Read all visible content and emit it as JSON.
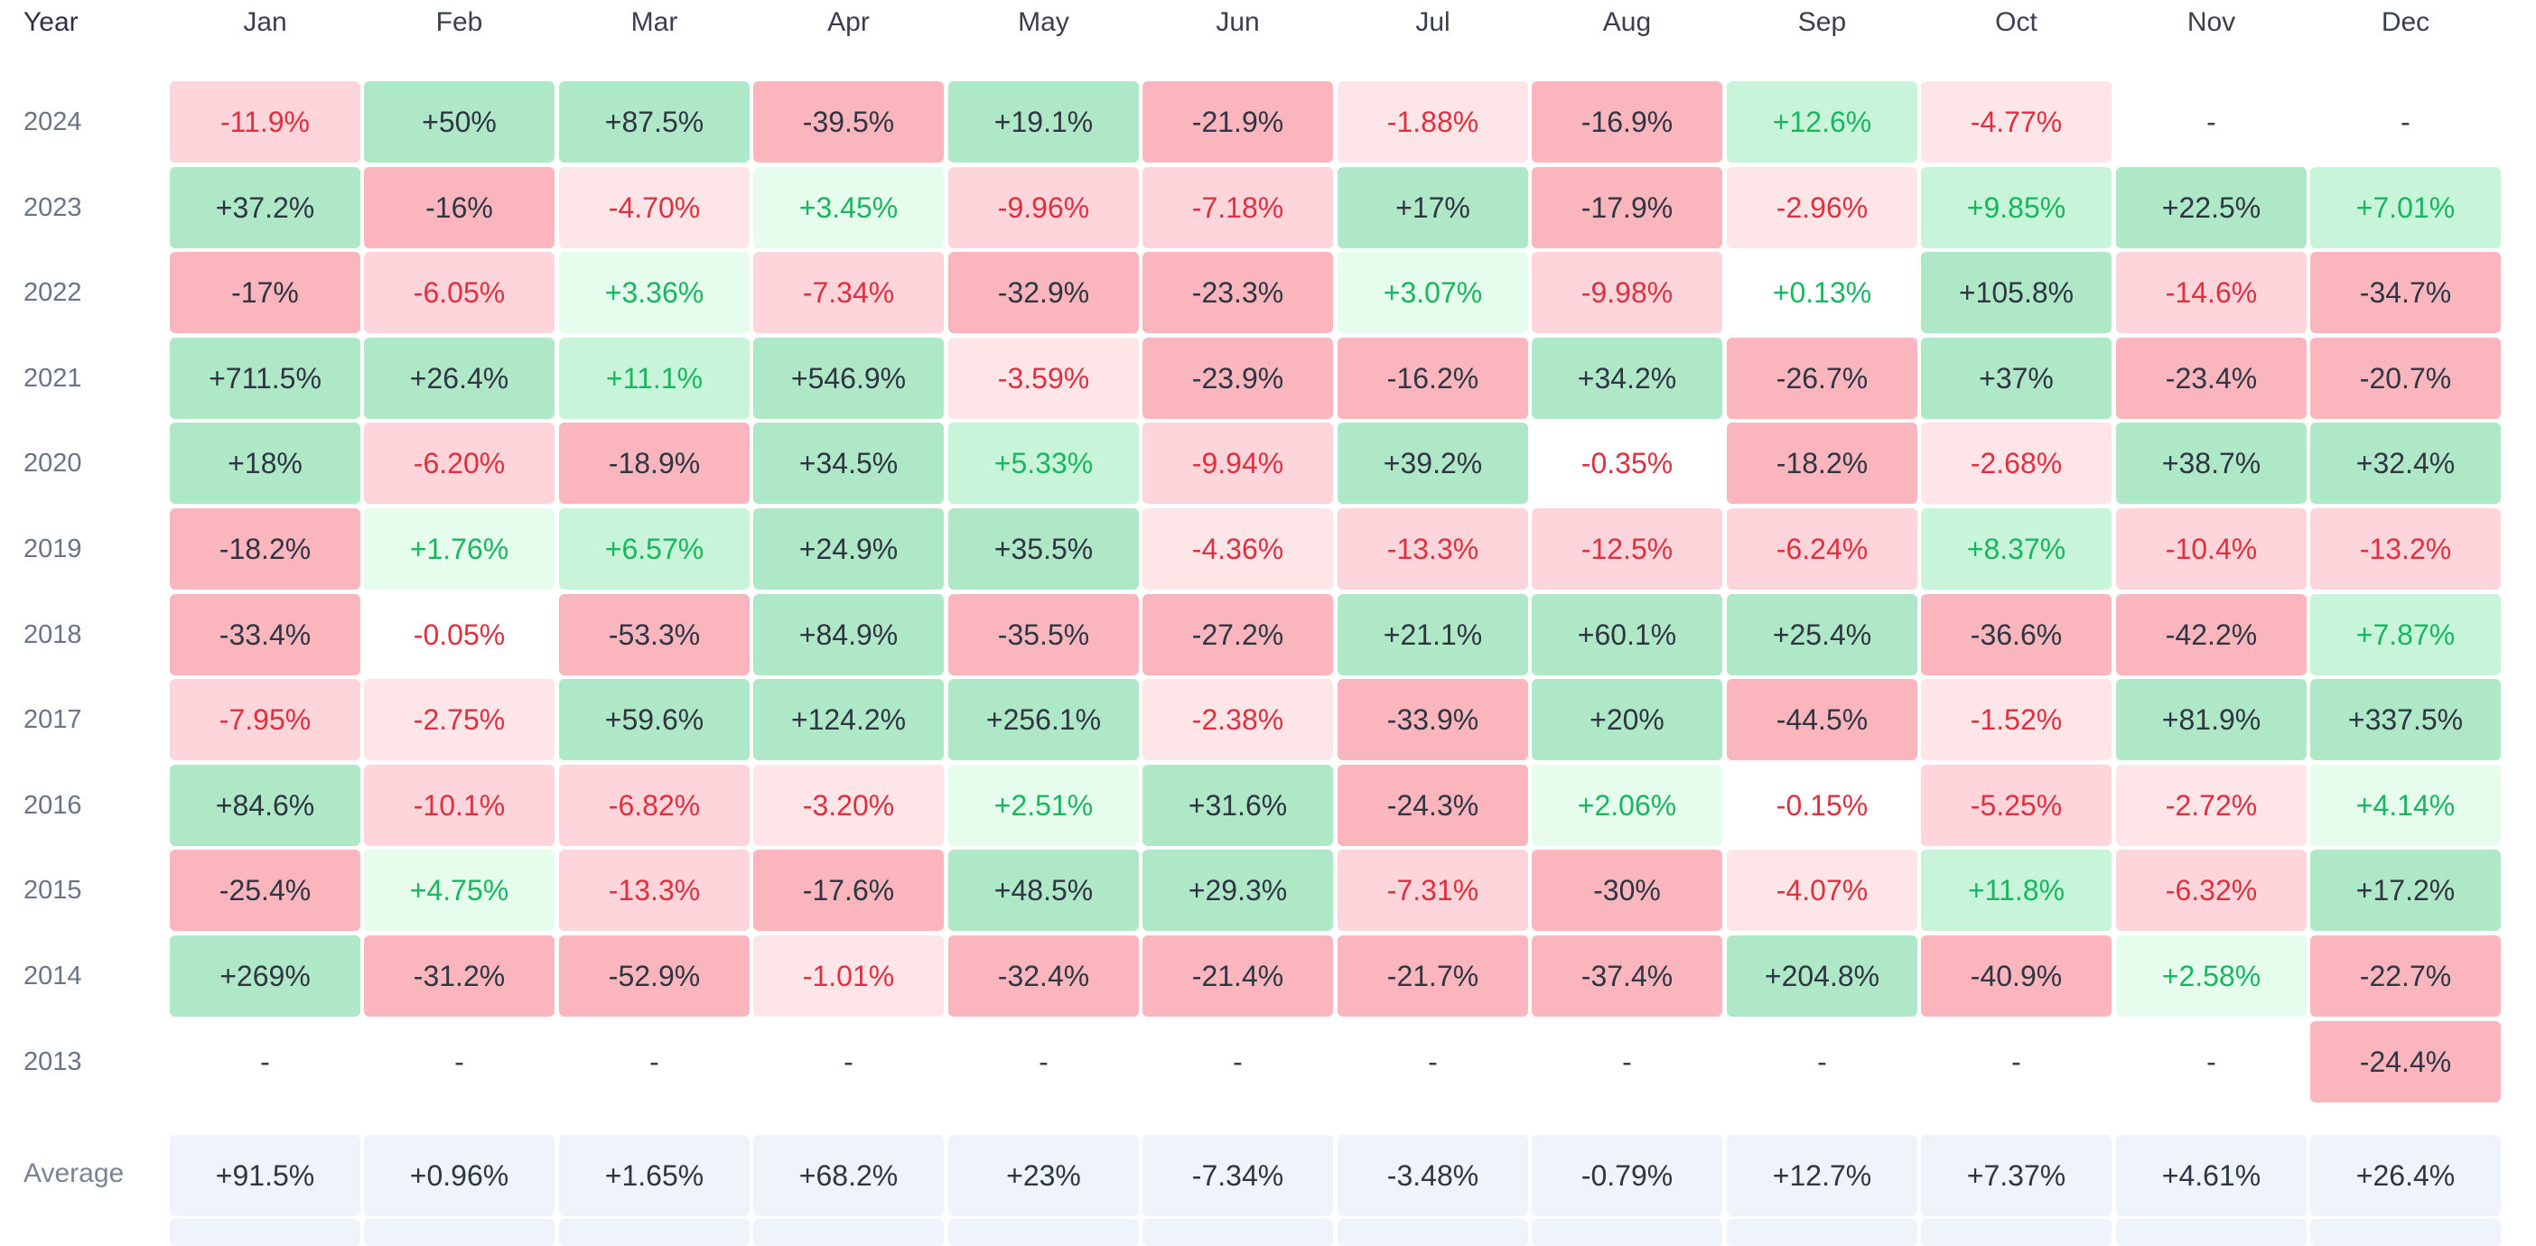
{
  "chart_data": {
    "type": "heatmap",
    "title": "",
    "corner_label": "Year",
    "columns": [
      "Jan",
      "Feb",
      "Mar",
      "Apr",
      "May",
      "Jun",
      "Jul",
      "Aug",
      "Sep",
      "Oct",
      "Nov",
      "Dec"
    ],
    "rows": [
      {
        "year": "2024",
        "values": [
          "-11.9%",
          "+50%",
          "+87.5%",
          "-39.5%",
          "+19.1%",
          "-21.9%",
          "-1.88%",
          "-16.9%",
          "+12.6%",
          "-4.77%",
          "-",
          "-"
        ]
      },
      {
        "year": "2023",
        "values": [
          "+37.2%",
          "-16%",
          "-4.70%",
          "+3.45%",
          "-9.96%",
          "-7.18%",
          "+17%",
          "-17.9%",
          "-2.96%",
          "+9.85%",
          "+22.5%",
          "+7.01%"
        ]
      },
      {
        "year": "2022",
        "values": [
          "-17%",
          "-6.05%",
          "+3.36%",
          "-7.34%",
          "-32.9%",
          "-23.3%",
          "+3.07%",
          "-9.98%",
          "+0.13%",
          "+105.8%",
          "-14.6%",
          "-34.7%"
        ]
      },
      {
        "year": "2021",
        "values": [
          "+711.5%",
          "+26.4%",
          "+11.1%",
          "+546.9%",
          "-3.59%",
          "-23.9%",
          "-16.2%",
          "+34.2%",
          "-26.7%",
          "+37%",
          "-23.4%",
          "-20.7%"
        ]
      },
      {
        "year": "2020",
        "values": [
          "+18%",
          "-6.20%",
          "-18.9%",
          "+34.5%",
          "+5.33%",
          "-9.94%",
          "+39.2%",
          "-0.35%",
          "-18.2%",
          "-2.68%",
          "+38.7%",
          "+32.4%"
        ]
      },
      {
        "year": "2019",
        "values": [
          "-18.2%",
          "+1.76%",
          "+6.57%",
          "+24.9%",
          "+35.5%",
          "-4.36%",
          "-13.3%",
          "-12.5%",
          "-6.24%",
          "+8.37%",
          "-10.4%",
          "-13.2%"
        ]
      },
      {
        "year": "2018",
        "values": [
          "-33.4%",
          "-0.05%",
          "-53.3%",
          "+84.9%",
          "-35.5%",
          "-27.2%",
          "+21.1%",
          "+60.1%",
          "+25.4%",
          "-36.6%",
          "-42.2%",
          "+7.87%"
        ]
      },
      {
        "year": "2017",
        "values": [
          "-7.95%",
          "-2.75%",
          "+59.6%",
          "+124.2%",
          "+256.1%",
          "-2.38%",
          "-33.9%",
          "+20%",
          "-44.5%",
          "-1.52%",
          "+81.9%",
          "+337.5%"
        ]
      },
      {
        "year": "2016",
        "values": [
          "+84.6%",
          "-10.1%",
          "-6.82%",
          "-3.20%",
          "+2.51%",
          "+31.6%",
          "-24.3%",
          "+2.06%",
          "-0.15%",
          "-5.25%",
          "-2.72%",
          "+4.14%"
        ]
      },
      {
        "year": "2015",
        "values": [
          "-25.4%",
          "+4.75%",
          "-13.3%",
          "-17.6%",
          "+48.5%",
          "+29.3%",
          "-7.31%",
          "-30%",
          "-4.07%",
          "+11.8%",
          "-6.32%",
          "+17.2%"
        ]
      },
      {
        "year": "2014",
        "values": [
          "+269%",
          "-31.2%",
          "-52.9%",
          "-1.01%",
          "-32.4%",
          "-21.4%",
          "-21.7%",
          "-37.4%",
          "+204.8%",
          "-40.9%",
          "+2.58%",
          "-22.7%"
        ]
      },
      {
        "year": "2013",
        "values": [
          "-",
          "-",
          "-",
          "-",
          "-",
          "-",
          "-",
          "-",
          "-",
          "-",
          "-",
          "-24.4%"
        ]
      }
    ],
    "average": {
      "label": "Average",
      "values": [
        "+91.5%",
        "+0.96%",
        "+1.65%",
        "+68.2%",
        "+23%",
        "-7.34%",
        "-3.48%",
        "-0.79%",
        "+12.7%",
        "+7.37%",
        "+4.61%",
        "+26.4%"
      ]
    },
    "colors": {
      "strong_green_bg": "#aee8c7",
      "light_green_bg": "#c8f5da",
      "pale_green_bg": "#e6fcec",
      "strong_red_bg": "#fbb6bd",
      "light_red_bg": "#fdd5da",
      "pale_red_bg": "#fee6e8",
      "green_text": "#17b760",
      "red_text": "#e0303f",
      "dark_text": "#2f3542",
      "average_bg": "#eff3fa"
    }
  }
}
